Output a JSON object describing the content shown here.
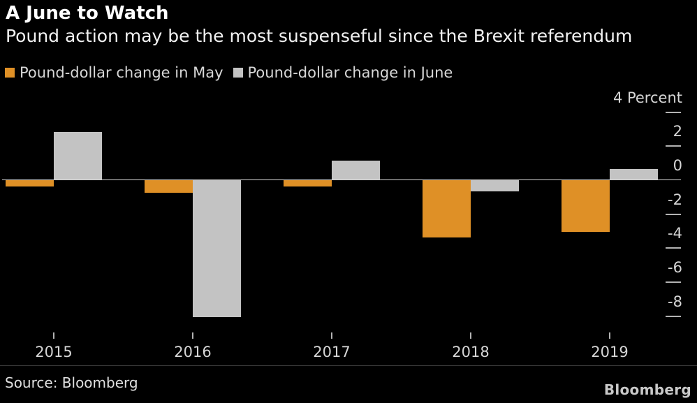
{
  "header": {
    "title": "A June to Watch",
    "subtitle": "Pound action may be the most suspenseful since the Brexit referendum"
  },
  "legend": {
    "items": [
      {
        "label": "Pound-dollar change in May",
        "color": "#DF9026"
      },
      {
        "label": "Pound-dollar change in June",
        "color": "#C3C3C3"
      }
    ]
  },
  "chart_data": {
    "type": "bar",
    "title": "A June to Watch",
    "subtitle": "Pound action may be the most suspenseful since the Brexit referendum",
    "categories": [
      "2015",
      "2016",
      "2017",
      "2018",
      "2019"
    ],
    "series": [
      {
        "name": "Pound-dollar change in May",
        "color": "#DF9026",
        "values": [
          -0.4,
          -0.8,
          -0.4,
          -3.4,
          -3.1
        ]
      },
      {
        "name": "Pound-dollar change in June",
        "color": "#C3C3C3",
        "values": [
          2.8,
          -8.1,
          1.1,
          -0.7,
          0.6
        ]
      }
    ],
    "xlabel": "",
    "ylabel": "Percent",
    "ylim": [
      -9,
      5
    ],
    "grid": false,
    "legend_position": "top-left",
    "y_axis": {
      "side": "right",
      "unit_label": "Percent",
      "ticks": [
        {
          "value": 4,
          "label": "4 Percent"
        },
        {
          "value": 2,
          "label": "2"
        },
        {
          "value": 0,
          "label": "0"
        },
        {
          "value": -2,
          "label": "-2"
        },
        {
          "value": -4,
          "label": "-4"
        },
        {
          "value": -6,
          "label": "-6"
        },
        {
          "value": -8,
          "label": "-8"
        }
      ]
    }
  },
  "footer": {
    "source": "Source: Bloomberg",
    "logo": "Bloomberg"
  },
  "colors": {
    "background": "#000000",
    "axis_line": "#d6d6d6",
    "tick": "#b3b3b3",
    "text_primary": "#ffffff",
    "text_secondary": "#d8d8d8"
  }
}
